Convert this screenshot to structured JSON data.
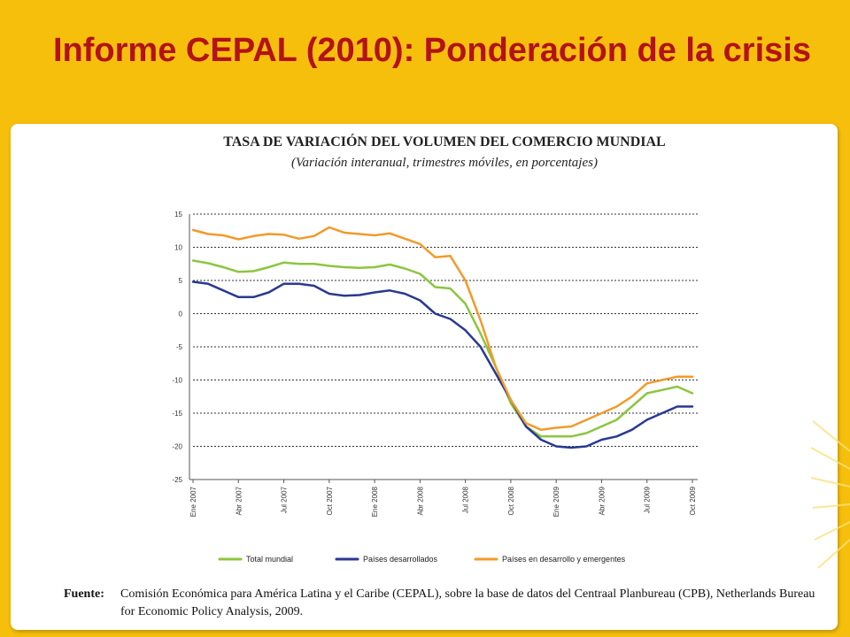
{
  "slide": {
    "title": "Informe CEPAL (2010): Ponderación de la crisis"
  },
  "chart_data": {
    "type": "line",
    "title": "TASA DE VARIACIÓN DEL VOLUMEN DEL COMERCIO MUNDIAL",
    "subtitle": "(Variación interanual, trimestres móviles, en porcentajes)",
    "xlabel": "",
    "ylabel": "",
    "ylim": [
      -25,
      15
    ],
    "yticks": [
      15,
      10,
      5,
      0,
      -5,
      -10,
      -15,
      -20,
      -25
    ],
    "grid": true,
    "legend_position": "bottom",
    "x_tick_labels": [
      "Ene 2007",
      "Abr 2007",
      "Jul 2007",
      "Oct 2007",
      "Ene 2008",
      "Abr 2008",
      "Jul 2008",
      "Oct 2008",
      "Ene 2009",
      "Abr 2009",
      "Jul 2009",
      "Oct 2009"
    ],
    "x": [
      "Ene 2007",
      "Feb 2007",
      "Mar 2007",
      "Abr 2007",
      "May 2007",
      "Jun 2007",
      "Jul 2007",
      "Ago 2007",
      "Sep 2007",
      "Oct 2007",
      "Nov 2007",
      "Dic 2007",
      "Ene 2008",
      "Feb 2008",
      "Mar 2008",
      "Abr 2008",
      "May 2008",
      "Jun 2008",
      "Jul 2008",
      "Ago 2008",
      "Sep 2008",
      "Oct 2008",
      "Nov 2008",
      "Dic 2008",
      "Ene 2009",
      "Feb 2009",
      "Mar 2009",
      "Abr 2009",
      "May 2009",
      "Jun 2009",
      "Jul 2009",
      "Ago 2009",
      "Sep 2009",
      "Oct 2009"
    ],
    "series": [
      {
        "name": "Total mundial",
        "color": "#8cc63f",
        "values": [
          8.0,
          7.6,
          7.0,
          6.3,
          6.4,
          7.0,
          7.7,
          7.5,
          7.5,
          7.2,
          7.0,
          6.9,
          7.0,
          7.4,
          6.8,
          6.0,
          4.0,
          3.8,
          1.5,
          -3.0,
          -8.0,
          -13.5,
          -17.0,
          -18.5,
          -18.5,
          -18.5,
          -18.0,
          -17.0,
          -16.0,
          -14.0,
          -12.0,
          -11.5,
          -11.0,
          -12.0
        ]
      },
      {
        "name": "Países desarrollados",
        "color": "#2a3990",
        "values": [
          4.8,
          4.5,
          3.5,
          2.5,
          2.5,
          3.2,
          4.5,
          4.5,
          4.2,
          3.0,
          2.7,
          2.8,
          3.2,
          3.5,
          3.0,
          2.0,
          0.0,
          -0.8,
          -2.5,
          -5.0,
          -9.0,
          -13.0,
          -17.0,
          -19.0,
          -20.0,
          -20.2,
          -20.0,
          -19.0,
          -18.5,
          -17.5,
          -16.0,
          -15.0,
          -14.0,
          -14.0
        ]
      },
      {
        "name": "Países en desarrollo y emergentes",
        "color": "#f39a2b",
        "values": [
          12.6,
          12.0,
          11.8,
          11.2,
          11.7,
          12.0,
          11.9,
          11.3,
          11.7,
          13.0,
          12.2,
          12.0,
          11.8,
          12.1,
          11.3,
          10.5,
          8.5,
          8.7,
          5.0,
          -1.0,
          -8.0,
          -13.0,
          -16.5,
          -17.5,
          -17.2,
          -17.0,
          -16.0,
          -15.0,
          -14.0,
          -12.5,
          -10.5,
          -10.0,
          -9.5,
          -9.5
        ]
      }
    ]
  },
  "source": {
    "label": "Fuente:",
    "text": "Comisión Económica para América Latina y el Caribe (CEPAL), sobre la base de datos del Centraal Planbureau (CPB), Netherlands Bureau for Economic Policy Analysis, 2009."
  }
}
